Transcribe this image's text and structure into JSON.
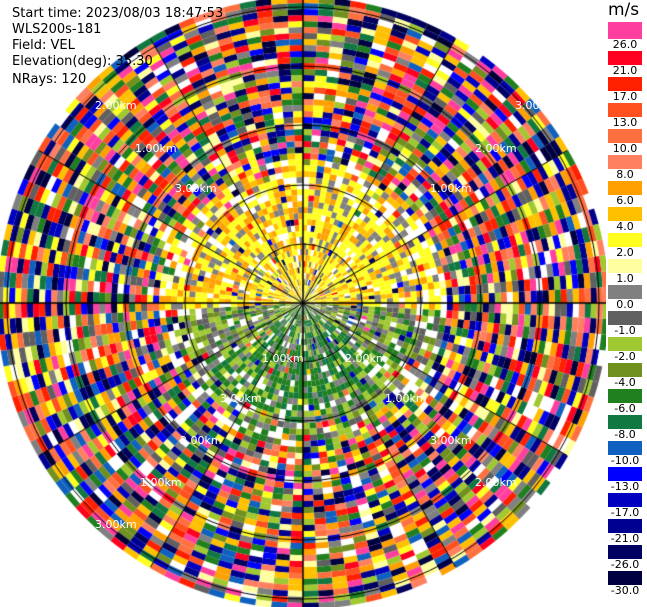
{
  "meta": {
    "start_time": "Start time: 2023/08/03 18:47:53",
    "instrument": "WLS200s-181",
    "field": "Field: VEL",
    "elevation": "Elevation(deg): 35.30",
    "nrays": "NRays: 120"
  },
  "colorbar": {
    "unit": "m/s",
    "labels": [
      "26.0",
      "21.0",
      "17.0",
      "13.0",
      "10.0",
      "8.0",
      "6.0",
      "4.0",
      "2.0",
      "1.0",
      "0.0",
      "-1.0",
      "-2.0",
      "-4.0",
      "-6.0",
      "-8.0",
      "-10.0",
      "-13.0",
      "-17.0",
      "-21.0",
      "-26.0",
      "-30.0"
    ],
    "colors": [
      "#ff3fa0",
      "#ff0020",
      "#ff2000",
      "#ff5020",
      "#ff7040",
      "#ff8060",
      "#ffa000",
      "#ffc000",
      "#ffff20",
      "#ffffa0",
      "#808080",
      "#606060",
      "#a0c830",
      "#709020",
      "#208020",
      "#107840",
      "#1060c0",
      "#0000ff",
      "#0000c0",
      "#000090",
      "#000060",
      "#000040"
    ]
  },
  "range_rings": {
    "labels": [
      "1.00km",
      "2.00km",
      "3.00km",
      "1.00km",
      "2.00km",
      "3.00km"
    ]
  },
  "ppi": {
    "rays": 120,
    "background": "#ffffff",
    "ring_color": "#000000"
  }
}
